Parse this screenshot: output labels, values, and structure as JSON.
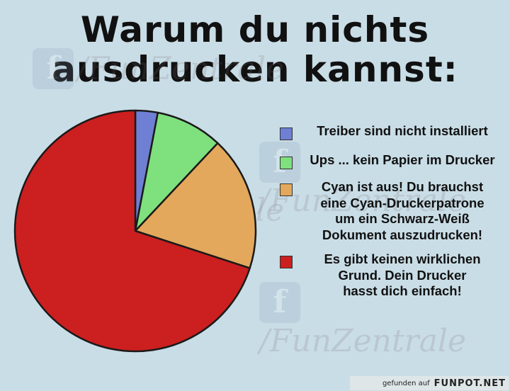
{
  "title_lines": [
    "Warum du nichts",
    "ausdrucken kannst:"
  ],
  "watermark": {
    "icon": "facebook-icon",
    "letter": "f",
    "text": "/FunZentrale"
  },
  "chart_data": {
    "type": "pie",
    "title": "Warum du nichts ausdrucken kannst:",
    "start_angle_deg": 0,
    "direction": "clockwise",
    "slices": [
      {
        "label": "Treiber sind nicht installiert",
        "value": 3,
        "color": "#6f7fd4"
      },
      {
        "label": "Ups ... kein Papier im Drucker",
        "value": 9,
        "color": "#7fe07e"
      },
      {
        "label": "Cyan ist aus! Du brauchst eine Cyan-Druckerpatrone um ein Schwarz-Weiß Dokument auszudrucken!",
        "value": 18,
        "color": "#e3a85b"
      },
      {
        "label": "Es gibt keinen wirklichen Grund. Dein Drucker hasst dich einfach!",
        "value": 70,
        "color": "#cc1f1f"
      }
    ],
    "legend_position": "right"
  },
  "legend_lines": [
    [
      "Treiber sind nicht installiert"
    ],
    [
      "Ups ... kein Papier im Drucker"
    ],
    [
      "Cyan ist aus! Du brauchst",
      "eine Cyan-Druckerpatrone",
      "um ein Schwarz-Weiß",
      "Dokument auszudrucken!"
    ],
    [
      "Es gibt keinen wirklichen",
      "Grund. Dein Drucker",
      "hasst dich einfach!"
    ]
  ],
  "footer": {
    "prefix": "gefunden auf",
    "brand": "FUNPOT.NET"
  }
}
